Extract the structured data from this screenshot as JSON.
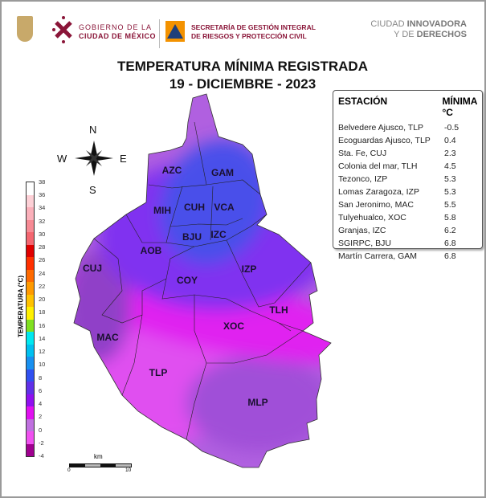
{
  "header": {
    "gov_line1": "GOBIERNO DE LA",
    "gov_line2": "CIUDAD DE MÉXICO",
    "sgirpc_line1": "SECRETARÍA DE GESTIÓN INTEGRAL",
    "sgirpc_line2": "DE RIESGOS Y PROTECCIÓN CIVIL",
    "slogan_a": "CIUDAD ",
    "slogan_b": "INNOVADORA",
    "slogan_c": "Y DE ",
    "slogan_d": "DERECHOS"
  },
  "title": {
    "line1": "TEMPERATURA MÍNIMA REGISTRADA",
    "line2": "19 - DICIEMBRE - 2023"
  },
  "table": {
    "col1": "ESTACIÓN",
    "col2": "MÍNIMA °C",
    "rows": [
      {
        "station": "Belvedere Ajusco, TLP",
        "value": "-0.5"
      },
      {
        "station": "Ecoguardas Ajusco, TLP",
        "value": "0.4"
      },
      {
        "station": "Sta. Fe, CUJ",
        "value": "2.3"
      },
      {
        "station": "Colonia del mar, TLH",
        "value": "4.5"
      },
      {
        "station": "Tezonco, IZP",
        "value": "5.3"
      },
      {
        "station": "Lomas Zaragoza, IZP",
        "value": "5.3"
      },
      {
        "station": "San Jeronimo, MAC",
        "value": "5.5"
      },
      {
        "station": "Tulyehualco, XOC",
        "value": "5.8"
      },
      {
        "station": "Granjas, IZC",
        "value": "6.2"
      },
      {
        "station": "SGIRPC, BJU",
        "value": "6.8"
      },
      {
        "station": "Martín Carrera, GAM",
        "value": "6.8"
      }
    ]
  },
  "colorbar": {
    "title": "TEMPERATURA (°C)",
    "ticks": [
      "38",
      "36",
      "34",
      "32",
      "30",
      "28",
      "26",
      "24",
      "22",
      "20",
      "18",
      "16",
      "14",
      "12",
      "10",
      "8",
      "6",
      "4",
      "2",
      "0",
      "-2",
      "-4"
    ],
    "colors": [
      "#ffffff",
      "#fdd0d6",
      "#fbb0ba",
      "#f78a94",
      "#f46670",
      "#e00000",
      "#ff3000",
      "#ff6a00",
      "#ff9a00",
      "#ffc200",
      "#fff000",
      "#80e020",
      "#00e8f0",
      "#00c0f0",
      "#1890f0",
      "#3050f0",
      "#6030e8",
      "#9010f0",
      "#e010f0",
      "#c070e0",
      "#f050f0",
      "#a00090"
    ]
  },
  "compass": {
    "n": "N",
    "s": "S",
    "e": "E",
    "w": "W"
  },
  "scale": {
    "unit": "km",
    "min": "0",
    "max": "10"
  },
  "boroughs": [
    "AZC",
    "GAM",
    "MIH",
    "CUH",
    "VCA",
    "BJU",
    "IZC",
    "AOB",
    "CUJ",
    "COY",
    "IZP",
    "TLH",
    "XOC",
    "MAC",
    "TLP",
    "MLP"
  ]
}
